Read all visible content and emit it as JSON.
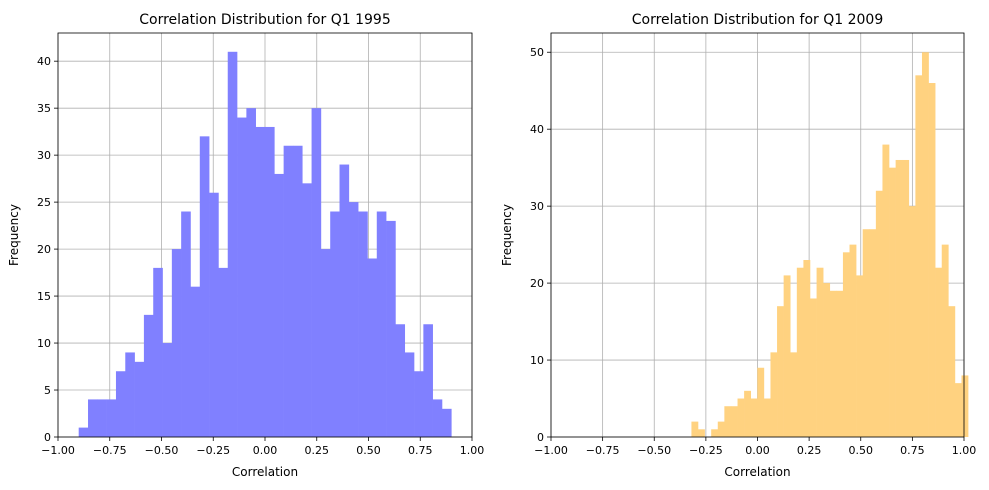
{
  "chart_data": [
    {
      "type": "histogram",
      "title": "Correlation Distribution for Q1 1995",
      "xlabel": "Correlation",
      "ylabel": "Frequency",
      "xlim": [
        -1.0,
        1.0
      ],
      "ylim": [
        0,
        43
      ],
      "xticks": [
        "−1.00",
        "−0.75",
        "−0.50",
        "−0.25",
        "0.00",
        "0.25",
        "0.50",
        "0.75",
        "1.00"
      ],
      "yticks": [
        "0",
        "5",
        "10",
        "15",
        "20",
        "25",
        "30",
        "35",
        "40"
      ],
      "grid": true,
      "color": "#8080ff",
      "bin_start": -0.9,
      "bin_width": 0.045,
      "values": [
        1,
        4,
        4,
        4,
        7,
        9,
        8,
        13,
        18,
        10,
        20,
        24,
        16,
        32,
        26,
        18,
        41,
        34,
        35,
        33,
        33,
        28,
        31,
        31,
        27,
        35,
        20,
        24,
        29,
        25,
        24,
        19,
        24,
        23,
        12,
        9,
        7,
        12,
        4,
        3
      ]
    },
    {
      "type": "histogram",
      "title": "Correlation Distribution for Q1 2009",
      "xlabel": "Correlation",
      "ylabel": "Frequency",
      "xlim": [
        -1.0,
        1.0
      ],
      "ylim": [
        0,
        52.5
      ],
      "xticks": [
        "−1.00",
        "−0.75",
        "−0.50",
        "−0.25",
        "0.00",
        "0.25",
        "0.50",
        "0.75",
        "1.00"
      ],
      "yticks": [
        "0",
        "10",
        "20",
        "30",
        "40",
        "50"
      ],
      "grid": true,
      "color": "#ffd280",
      "bin_start": -0.32,
      "bin_width": 0.0319,
      "values": [
        2,
        1,
        0,
        1,
        2,
        4,
        4,
        5,
        6,
        5,
        9,
        5,
        11,
        17,
        21,
        11,
        22,
        23,
        18,
        22,
        20,
        19,
        19,
        24,
        25,
        21,
        27,
        27,
        32,
        38,
        35,
        36,
        36,
        30,
        47,
        50,
        46,
        22,
        25,
        17,
        7,
        8
      ]
    }
  ]
}
